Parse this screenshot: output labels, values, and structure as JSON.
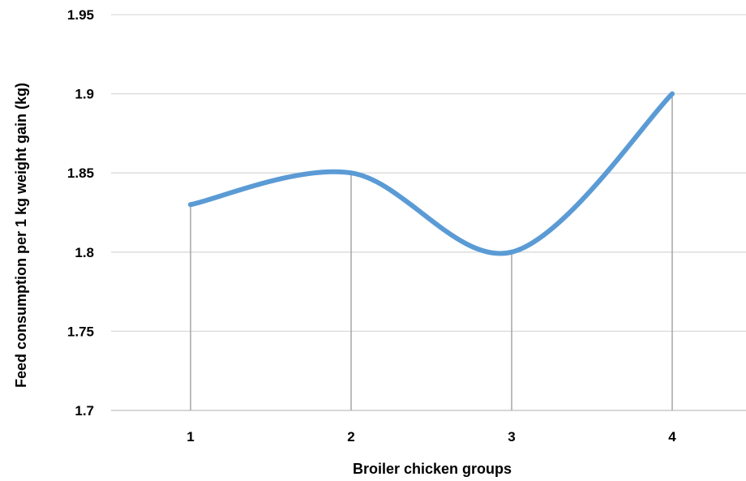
{
  "chart_data": {
    "type": "line",
    "title": "",
    "xlabel": "Broiler chicken groups",
    "ylabel": "Feed consumption per 1 kg weight gain (kg)",
    "categories": [
      "1",
      "2",
      "3",
      "4"
    ],
    "series": [
      {
        "values": [
          1.83,
          1.85,
          1.8,
          1.9
        ],
        "color": "#5B9BD5"
      }
    ],
    "ylim": [
      1.7,
      1.95
    ],
    "yticks": [
      1.7,
      1.75,
      1.8,
      1.85,
      1.9,
      1.95
    ],
    "ytick_labels": [
      "1.7",
      "1.75",
      "1.8",
      "1.85",
      "1.9",
      "1.95"
    ],
    "smoothed": true,
    "drop_lines": true,
    "grid": "horizontal",
    "legend": "none"
  }
}
